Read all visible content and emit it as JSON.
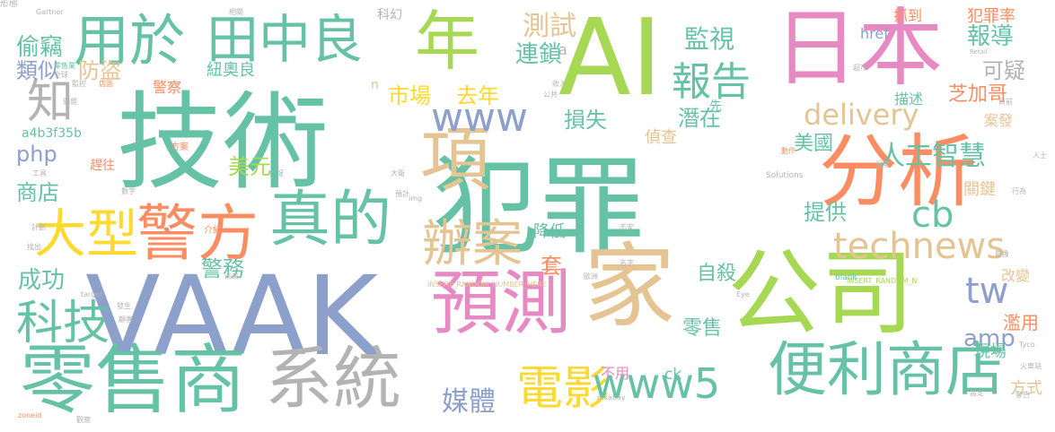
{
  "palette": {
    "teal": "#66c2a5",
    "orange": "#fc8d62",
    "blue": "#8da0cb",
    "pink": "#e78ac3",
    "green": "#a6d854",
    "yellow": "#ffd92f",
    "tan": "#e5c494",
    "gray": "#b3b3b3"
  },
  "words": [
    {
      "text": "技術",
      "color": "teal"
    },
    {
      "text": "犯罪",
      "color": "teal"
    },
    {
      "text": "AI",
      "color": "green"
    },
    {
      "text": "日本",
      "color": "pink"
    },
    {
      "text": "VAAK",
      "color": "blue"
    },
    {
      "text": "家",
      "color": "tan"
    },
    {
      "text": "公司",
      "color": "green"
    },
    {
      "text": "分析",
      "color": "orange"
    },
    {
      "text": "預測",
      "color": "pink"
    },
    {
      "text": "零售商",
      "color": "teal"
    },
    {
      "text": "系統",
      "color": "gray"
    },
    {
      "text": "便利商店",
      "color": "teal"
    },
    {
      "text": "年",
      "color": "green"
    },
    {
      "text": "項",
      "color": "tan"
    },
    {
      "text": "警方",
      "color": "orange"
    },
    {
      "text": "大型",
      "color": "yellow"
    },
    {
      "text": "真的",
      "color": "teal"
    },
    {
      "text": "用於",
      "color": "teal"
    },
    {
      "text": "田中良",
      "color": "teal"
    },
    {
      "text": "辦案",
      "color": "tan"
    },
    {
      "text": "電影",
      "color": "yellow"
    },
    {
      "text": "www5",
      "color": "teal"
    },
    {
      "text": "報告",
      "color": "teal"
    },
    {
      "text": "www",
      "color": "blue"
    },
    {
      "text": "科技",
      "color": "teal"
    },
    {
      "text": "technews",
      "color": "tan"
    },
    {
      "text": "delivery",
      "color": "tan"
    },
    {
      "text": "人工智慧",
      "color": "teal"
    },
    {
      "text": "知",
      "color": "gray"
    },
    {
      "text": "cb",
      "color": "teal"
    },
    {
      "text": "tw",
      "color": "blue"
    },
    {
      "text": "媒體",
      "color": "blue"
    },
    {
      "text": "監視",
      "color": "teal"
    },
    {
      "text": "測試",
      "color": "tan"
    },
    {
      "text": "連鎖",
      "color": "teal"
    },
    {
      "text": "報導",
      "color": "teal"
    },
    {
      "text": "偷竊",
      "color": "teal"
    },
    {
      "text": "類似",
      "color": "blue"
    },
    {
      "text": "防盜",
      "color": "tan"
    },
    {
      "text": "市場",
      "color": "yellow"
    },
    {
      "text": "去年",
      "color": "yellow"
    },
    {
      "text": "可疑",
      "color": "gray"
    },
    {
      "text": "芝加哥",
      "color": "orange"
    },
    {
      "text": "php",
      "color": "blue"
    },
    {
      "text": "美元",
      "color": "green"
    },
    {
      "text": "商店",
      "color": "teal"
    },
    {
      "text": "損失",
      "color": "teal"
    },
    {
      "text": "潛在",
      "color": "teal"
    },
    {
      "text": "偵查",
      "color": "tan"
    },
    {
      "text": "成功",
      "color": "teal"
    },
    {
      "text": "警務",
      "color": "teal"
    },
    {
      "text": "提供",
      "color": "teal"
    },
    {
      "text": "自殺",
      "color": "teal"
    },
    {
      "text": "amp",
      "color": "blue"
    },
    {
      "text": "零售",
      "color": "teal"
    },
    {
      "text": "套",
      "color": "orange"
    },
    {
      "text": "降低",
      "color": "teal"
    },
    {
      "text": "不用",
      "color": "pink"
    },
    {
      "text": "ck",
      "color": "teal"
    },
    {
      "text": "方式",
      "color": "tan"
    },
    {
      "text": "濫用",
      "color": "orange"
    },
    {
      "text": "現場",
      "color": "teal"
    },
    {
      "text": "美國",
      "color": "teal"
    },
    {
      "text": "關鍵",
      "color": "tan"
    },
    {
      "text": "改變",
      "color": "tan"
    },
    {
      "text": "案發",
      "color": "tan"
    },
    {
      "text": "描述",
      "color": "teal"
    },
    {
      "text": "犯罪率",
      "color": "orange"
    },
    {
      "text": "抓到",
      "color": "orange"
    },
    {
      "text": "href",
      "color": "blue"
    },
    {
      "text": "警察",
      "color": "orange"
    },
    {
      "text": "紐奧良",
      "color": "teal"
    },
    {
      "text": "a4b3f35b",
      "color": "teal"
    },
    {
      "text": "趕往",
      "color": "orange"
    },
    {
      "text": "科幻",
      "color": "gray"
    },
    {
      "text": "先",
      "color": "teal"
    },
    {
      "text": "INSERT_RANDOM_NUMBER_HERE",
      "color": "tan"
    },
    {
      "text": "INSERT_RANDOM_N",
      "color": "green"
    },
    {
      "text": "Solutions",
      "color": "gray"
    },
    {
      "text": "Retail",
      "color": "gray"
    },
    {
      "text": "Gartner",
      "color": "gray"
    },
    {
      "text": "zoneid",
      "color": "orange"
    },
    {
      "text": "pixabay",
      "color": "gray"
    },
    {
      "text": "target",
      "color": "gray"
    },
    {
      "text": "blank",
      "color": "teal"
    },
    {
      "text": "img",
      "color": "gray"
    },
    {
      "text": "Eye",
      "color": "gray"
    },
    {
      "text": "Tyco",
      "color": "gray"
    },
    {
      "text": "n",
      "color": "tan"
    },
    {
      "text": "a",
      "color": "gray"
    },
    {
      "text": "方案",
      "color": "orange"
    },
    {
      "text": "大衛",
      "color": "gray"
    },
    {
      "text": "預計",
      "color": "gray"
    },
    {
      "text": "動作",
      "color": "orange"
    },
    {
      "text": "人士",
      "color": "gray"
    },
    {
      "text": "程度",
      "color": "gray"
    },
    {
      "text": "收入",
      "color": "gray"
    },
    {
      "text": "公共",
      "color": "gray"
    },
    {
      "text": "不安",
      "color": "gray"
    },
    {
      "text": "歐洲",
      "color": "gray"
    },
    {
      "text": "名字",
      "color": "gray"
    },
    {
      "text": "火車站",
      "color": "gray"
    },
    {
      "text": "介紹",
      "color": "orange"
    },
    {
      "text": "數字",
      "color": "gray"
    },
    {
      "text": "全球",
      "color": "gray"
    },
    {
      "text": "零售業",
      "color": "teal"
    },
    {
      "text": "店面",
      "color": "orange"
    },
    {
      "text": "捕捉",
      "color": "teal"
    },
    {
      "text": "發生",
      "color": "gray"
    },
    {
      "text": "顧客",
      "color": "gray"
    },
    {
      "text": "未來",
      "color": "gray"
    },
    {
      "text": "計劃",
      "color": "gray"
    },
    {
      "text": "找出",
      "color": "gray"
    },
    {
      "text": "工具",
      "color": "gray"
    },
    {
      "text": "監控",
      "color": "gray"
    },
    {
      "text": "相關",
      "color": "gray"
    },
    {
      "text": "設定",
      "color": "gray"
    },
    {
      "text": "警告",
      "color": "gray"
    },
    {
      "text": "觀察",
      "color": "gray"
    },
    {
      "text": "影像",
      "color": "gray"
    },
    {
      "text": "行為",
      "color": "gray"
    },
    {
      "text": "超市",
      "color": "gray"
    },
    {
      "text": "目前",
      "color": "gray"
    },
    {
      "text": "問題",
      "color": "gray"
    },
    {
      "text": "形態",
      "color": "gray"
    }
  ]
}
